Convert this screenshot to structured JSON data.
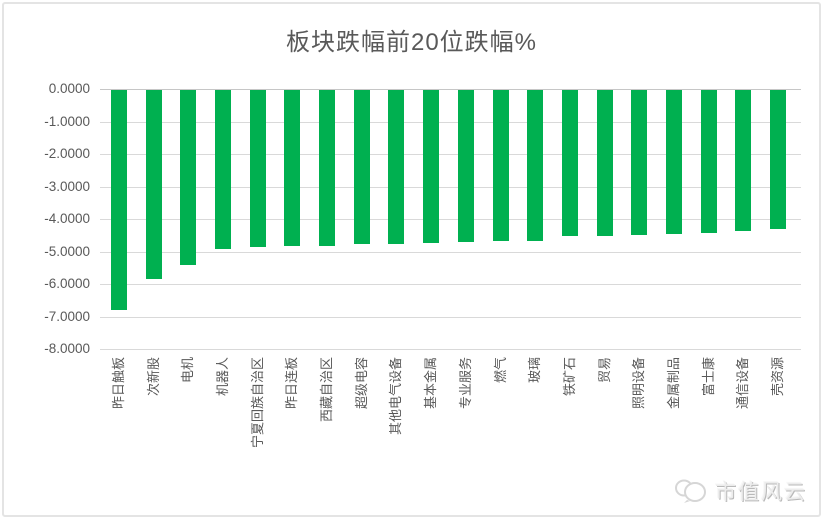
{
  "watermark": {
    "brand": "市值风云"
  },
  "chart_data": {
    "type": "bar",
    "title": "板块跌幅前20位跌幅%",
    "xlabel": "",
    "ylabel": "",
    "categories": [
      "昨日触板",
      "次新股",
      "电机",
      "机器人",
      "宁夏回族自治区",
      "昨日连板",
      "西藏自治区",
      "超级电容",
      "其他电气设备",
      "基本金属",
      "专业服务",
      "燃气",
      "玻璃",
      "铁矿石",
      "贸易",
      "照明设备",
      "金属制品",
      "富士康",
      "通信设备",
      "壳资源"
    ],
    "values": [
      -6.76,
      -5.83,
      -5.37,
      -4.9,
      -4.82,
      -4.81,
      -4.8,
      -4.74,
      -4.73,
      -4.7,
      -4.67,
      -4.66,
      -4.64,
      -4.5,
      -4.48,
      -4.45,
      -4.42,
      -4.39,
      -4.34,
      -4.28
    ],
    "y_ticks": [
      "0.0000",
      "-1.0000",
      "-2.0000",
      "-3.0000",
      "-4.0000",
      "-5.0000",
      "-6.0000",
      "-7.0000",
      "-8.0000"
    ],
    "ylim": [
      0,
      -8
    ],
    "grid": true,
    "legend": false,
    "bar_color": "#00B050",
    "grid_color": "#d9d9d9",
    "text_color": "#595959"
  }
}
